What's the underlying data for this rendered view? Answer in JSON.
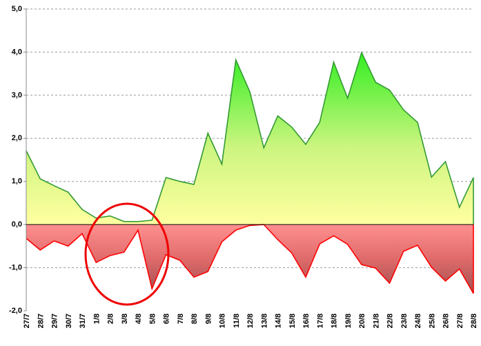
{
  "chart_data": {
    "type": "area",
    "categories": [
      "27/7",
      "28/7",
      "29/7",
      "30/7",
      "31/7",
      "1/8",
      "2/8",
      "3/8",
      "4/8",
      "5/8",
      "6/8",
      "7/8",
      "8/8",
      "9/8",
      "10/8",
      "11/8",
      "12/8",
      "13/8",
      "14/8",
      "15/8",
      "16/8",
      "17/8",
      "18/8",
      "19/8",
      "20/8",
      "21/8",
      "22/8",
      "23/8",
      "24/8",
      "25/8",
      "26/8",
      "27/8",
      "28/8"
    ],
    "series": [
      {
        "color": "#339933",
        "values": [
          1.71,
          1.06,
          0.9,
          0.75,
          0.35,
          0.15,
          0.2,
          0.07,
          0.07,
          0.1,
          1.09,
          1.0,
          0.93,
          2.12,
          1.4,
          3.82,
          3.08,
          1.78,
          2.52,
          2.26,
          1.86,
          2.37,
          3.77,
          2.93,
          3.99,
          3.3,
          3.12,
          2.66,
          2.37,
          1.1,
          1.46,
          0.4,
          1.09
        ]
      },
      {
        "color": "#ff0000",
        "values": [
          -0.32,
          -0.59,
          -0.38,
          -0.5,
          -0.21,
          -0.88,
          -0.72,
          -0.64,
          -0.13,
          -1.49,
          -0.7,
          -0.83,
          -1.22,
          -1.09,
          -0.4,
          -0.13,
          -0.02,
          0,
          -0.35,
          -0.66,
          -1.22,
          -0.45,
          -0.26,
          -0.46,
          -0.93,
          -1.01,
          -1.36,
          -0.62,
          -0.48,
          -0.99,
          -1.31,
          -1.03,
          -1.6
        ]
      }
    ],
    "ylim": [
      -2,
      5
    ],
    "yticks": [
      {
        "value": -2,
        "label": "-2,0"
      },
      {
        "value": -1,
        "label": "-1,0"
      },
      {
        "value": 0,
        "label": "0,0"
      },
      {
        "value": 1,
        "label": "1,0"
      },
      {
        "value": 2,
        "label": "2,0"
      },
      {
        "value": 3,
        "label": "3,0"
      },
      {
        "value": 4,
        "label": "4,0"
      },
      {
        "value": 5,
        "label": "5,0"
      }
    ],
    "grid": true
  }
}
